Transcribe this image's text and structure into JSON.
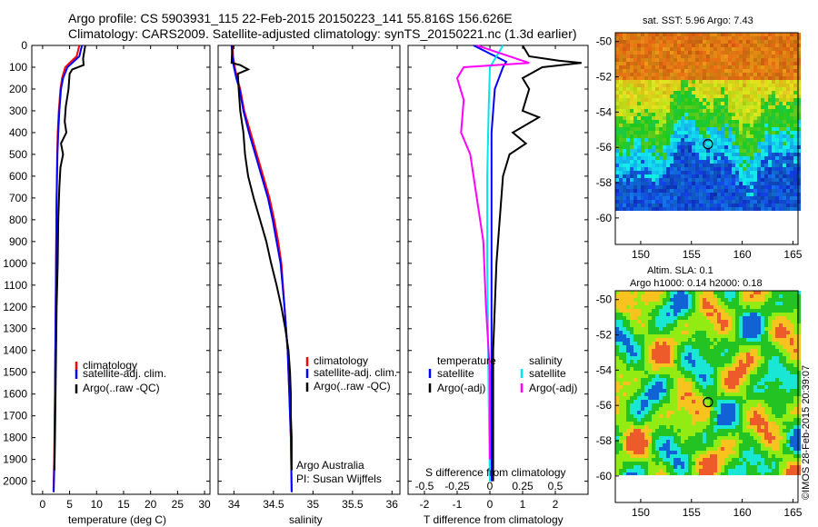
{
  "header": {
    "line1": "Argo profile: CS 5903931_115 22-Feb-2015 20150223_141 55.816S 156.626E",
    "line2": "Climatology: CARS2009. Satellite-adjusted climatology: synTS_20150221.nc (1.3d earlier)"
  },
  "colors": {
    "climatology": "#ff0000",
    "satellite": "#0000ff",
    "argo": "#000000",
    "sal_satellite": "#00e5ee",
    "sal_argo": "#ff00ff"
  },
  "chart_data": [
    {
      "type": "line",
      "name": "temperature",
      "xlabel": "temperature (deg C)",
      "ylabel": "",
      "xlim": [
        -2,
        31
      ],
      "ylim": [
        2060,
        0
      ],
      "xticks": [
        0,
        5,
        10,
        15,
        20,
        25,
        30
      ],
      "yticks": [
        0,
        100,
        200,
        300,
        400,
        500,
        600,
        700,
        800,
        900,
        1000,
        1100,
        1200,
        1300,
        1400,
        1500,
        1600,
        1700,
        1800,
        1900,
        2000
      ],
      "legend": {
        "position": "center-right",
        "entries": [
          "climatology",
          "satellite-adj. clim.",
          "Argo(..raw -QC)"
        ]
      },
      "series": [
        {
          "name": "climatology",
          "color": "red",
          "points": [
            [
              6.8,
              0
            ],
            [
              6.6,
              20
            ],
            [
              6.3,
              50
            ],
            [
              5.0,
              80
            ],
            [
              4.2,
              100
            ],
            [
              3.6,
              150
            ],
            [
              3.3,
              200
            ],
            [
              3.0,
              300
            ],
            [
              2.8,
              400
            ],
            [
              2.7,
              500
            ],
            [
              2.6,
              700
            ],
            [
              2.5,
              1000
            ],
            [
              2.4,
              1300
            ],
            [
              2.3,
              1600
            ],
            [
              2.15,
              1900
            ],
            [
              2.0,
              2050
            ]
          ]
        },
        {
          "name": "satellite-adj. clim.",
          "color": "blue",
          "points": [
            [
              7.3,
              0
            ],
            [
              7.1,
              20
            ],
            [
              6.8,
              50
            ],
            [
              5.5,
              80
            ],
            [
              4.6,
              100
            ],
            [
              3.8,
              150
            ],
            [
              3.4,
              200
            ],
            [
              3.1,
              300
            ],
            [
              2.9,
              400
            ],
            [
              2.75,
              500
            ],
            [
              2.6,
              700
            ],
            [
              2.5,
              1000
            ],
            [
              2.4,
              1300
            ],
            [
              2.3,
              1600
            ],
            [
              2.2,
              1900
            ],
            [
              2.05,
              2050
            ]
          ]
        },
        {
          "name": "Argo(..raw -QC)",
          "color": "black",
          "points": [
            [
              7.9,
              0
            ],
            [
              7.7,
              30
            ],
            [
              7.5,
              60
            ],
            [
              7.6,
              90
            ],
            [
              5.5,
              110
            ],
            [
              5.0,
              130
            ],
            [
              4.8,
              200
            ],
            [
              4.3,
              280
            ],
            [
              4.1,
              350
            ],
            [
              4.4,
              400
            ],
            [
              3.4,
              450
            ],
            [
              3.8,
              500
            ],
            [
              3.3,
              560
            ],
            [
              3.1,
              650
            ],
            [
              2.9,
              800
            ],
            [
              2.8,
              1000
            ],
            [
              2.6,
              1200
            ],
            [
              2.5,
              1400
            ],
            [
              2.4,
              1600
            ],
            [
              2.3,
              1800
            ],
            [
              2.2,
              1950
            ]
          ]
        }
      ]
    },
    {
      "type": "line",
      "name": "salinity",
      "xlabel": "salinity",
      "ylabel": "",
      "xlim": [
        33.8,
        36.1
      ],
      "ylim": [
        2060,
        0
      ],
      "xticks": [
        34,
        34.5,
        35,
        35.5,
        36
      ],
      "legend": {
        "position": "center-right",
        "entries": [
          "climatology",
          "satellite-adj. clim.",
          "Argo(..raw -QC)"
        ]
      },
      "annotations": [
        "Argo Australia",
        "PI: Susan Wijffels"
      ],
      "series": [
        {
          "name": "climatology",
          "color": "red",
          "points": [
            [
              33.98,
              0
            ],
            [
              33.99,
              50
            ],
            [
              34.01,
              100
            ],
            [
              34.04,
              150
            ],
            [
              34.08,
              200
            ],
            [
              34.13,
              300
            ],
            [
              34.21,
              400
            ],
            [
              34.29,
              500
            ],
            [
              34.37,
              600
            ],
            [
              34.45,
              700
            ],
            [
              34.51,
              800
            ],
            [
              34.56,
              900
            ],
            [
              34.6,
              1000
            ],
            [
              34.64,
              1200
            ],
            [
              34.68,
              1400
            ],
            [
              34.7,
              1600
            ],
            [
              34.72,
              1800
            ],
            [
              34.73,
              2050
            ]
          ]
        },
        {
          "name": "satellite-adj. clim.",
          "color": "blue",
          "points": [
            [
              33.97,
              0
            ],
            [
              33.98,
              50
            ],
            [
              34.0,
              100
            ],
            [
              34.03,
              150
            ],
            [
              34.07,
              200
            ],
            [
              34.12,
              300
            ],
            [
              34.19,
              400
            ],
            [
              34.27,
              500
            ],
            [
              34.35,
              600
            ],
            [
              34.43,
              700
            ],
            [
              34.49,
              800
            ],
            [
              34.54,
              900
            ],
            [
              34.59,
              1000
            ],
            [
              34.64,
              1200
            ],
            [
              34.68,
              1400
            ],
            [
              34.7,
              1600
            ],
            [
              34.72,
              1800
            ],
            [
              34.73,
              2050
            ]
          ]
        },
        {
          "name": "Argo(..raw -QC)",
          "color": "black",
          "points": [
            [
              33.98,
              0
            ],
            [
              33.97,
              80
            ],
            [
              34.08,
              90
            ],
            [
              34.18,
              110
            ],
            [
              34.05,
              130
            ],
            [
              34.06,
              200
            ],
            [
              34.08,
              300
            ],
            [
              34.12,
              400
            ],
            [
              34.14,
              500
            ],
            [
              34.18,
              600
            ],
            [
              34.25,
              700
            ],
            [
              34.33,
              800
            ],
            [
              34.41,
              900
            ],
            [
              34.47,
              1000
            ],
            [
              34.54,
              1100
            ],
            [
              34.6,
              1200
            ],
            [
              34.65,
              1300
            ],
            [
              34.69,
              1400
            ],
            [
              34.71,
              1500
            ],
            [
              34.72,
              1600
            ],
            [
              34.72,
              1700
            ],
            [
              34.73,
              1800
            ],
            [
              34.73,
              1950
            ]
          ]
        }
      ]
    },
    {
      "type": "line",
      "name": "difference",
      "xlabel": "T difference from climatology",
      "xlabel2": "S difference from climatology",
      "ylabel": "",
      "xlim": [
        -2.5,
        3
      ],
      "ylim": [
        2060,
        0
      ],
      "xticks": [
        -2,
        -1,
        0,
        1,
        2
      ],
      "xticks2": [
        "-0.5",
        "-0.25",
        "0",
        "0.25",
        "0.5"
      ],
      "legend": {
        "position": "center",
        "groups": [
          {
            "title": "temperature",
            "entries": [
              "satellite",
              "Argo(-adj)"
            ]
          },
          {
            "title": "salinity",
            "entries": [
              "satellite",
              "Argo(-adj)"
            ]
          }
        ]
      },
      "series": [
        {
          "name": "temperature satellite",
          "color": "blue",
          "points": [
            [
              -0.5,
              0
            ],
            [
              0.3,
              60
            ],
            [
              0.5,
              75
            ],
            [
              0.4,
              100
            ],
            [
              0.15,
              200
            ],
            [
              0.05,
              400
            ],
            [
              0.05,
              700
            ],
            [
              0.05,
              1000
            ],
            [
              0.05,
              1500
            ],
            [
              0.05,
              2000
            ]
          ]
        },
        {
          "name": "temperature Argo(-adj)",
          "color": "black",
          "points": [
            [
              1.0,
              0
            ],
            [
              1.2,
              50
            ],
            [
              2.1,
              70
            ],
            [
              2.8,
              80
            ],
            [
              1.6,
              100
            ],
            [
              1.0,
              150
            ],
            [
              1.2,
              200
            ],
            [
              1.0,
              300
            ],
            [
              1.5,
              330
            ],
            [
              0.7,
              400
            ],
            [
              1.1,
              450
            ],
            [
              0.6,
              500
            ],
            [
              0.4,
              600
            ],
            [
              0.3,
              800
            ],
            [
              0.2,
              1000
            ],
            [
              0.1,
              1400
            ],
            [
              0.1,
              2000
            ]
          ]
        },
        {
          "name": "salinity satellite",
          "color": "cyan",
          "points": [
            [
              0.1,
              0
            ],
            [
              0.0,
              100
            ],
            [
              -0.01,
              300
            ],
            [
              -0.02,
              600
            ],
            [
              -0.02,
              1000
            ],
            [
              -0.01,
              1600
            ],
            [
              0.0,
              2000
            ]
          ]
        },
        {
          "name": "salinity Argo(-adj)",
          "color": "magenta",
          "points": [
            [
              -0.1,
              0
            ],
            [
              0.2,
              60
            ],
            [
              0.3,
              80
            ],
            [
              -0.2,
              100
            ],
            [
              -0.25,
              150
            ],
            [
              -0.2,
              250
            ],
            [
              -0.22,
              400
            ],
            [
              -0.15,
              500
            ],
            [
              -0.1,
              700
            ],
            [
              -0.05,
              900
            ],
            [
              -0.03,
              1200
            ],
            [
              0.0,
              1500
            ],
            [
              0.0,
              1900
            ]
          ]
        }
      ]
    },
    {
      "type": "heatmap",
      "name": "sst-map",
      "title": "sat. SST: 5.96 Argo: 7.43",
      "xlim": [
        147.5,
        165.5
      ],
      "ylim": [
        -61.5,
        -49.5
      ],
      "xticks": [
        150,
        155,
        160,
        165
      ],
      "yticks": [
        -50,
        -52,
        -54,
        -56,
        -58,
        -60
      ],
      "marker": {
        "lon": 156.626,
        "lat": -55.816
      }
    },
    {
      "type": "heatmap",
      "name": "sla-map",
      "title": "Altim. SLA: 0.1",
      "subtitle": "Argo h1000: 0.14 h2000: 0.18",
      "xlim": [
        147.5,
        165.5
      ],
      "ylim": [
        -61.5,
        -49.5
      ],
      "xticks": [
        150,
        155,
        160,
        165
      ],
      "yticks": [
        -50,
        -52,
        -54,
        -56,
        -58,
        -60
      ],
      "marker": {
        "lon": 156.626,
        "lat": -55.816
      }
    }
  ],
  "legend_labels": {
    "climatology": "climatology",
    "satellite_adj": "satellite-adj. clim.",
    "argo_raw": "Argo(..raw -QC)",
    "temperature": "temperature",
    "salinity": "salinity",
    "satellite": "satellite",
    "argo_adj": "Argo(-adj)"
  },
  "footer": {
    "credit": "©IMOS 28-Feb-2015 20:39:07"
  }
}
